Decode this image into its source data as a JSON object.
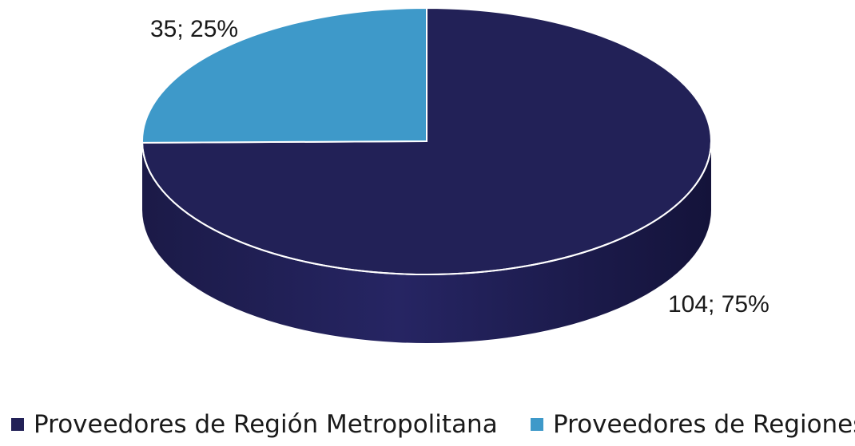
{
  "chart_data": {
    "type": "pie",
    "style": "3d",
    "slices": [
      {
        "name": "Proveedores de Región Metropolitana",
        "value": 104,
        "percent": 75,
        "label": "104; 75%",
        "color": "#222157"
      },
      {
        "name": "Proveedores de Regiones",
        "value": 35,
        "percent": 25,
        "label": "35; 25%",
        "color": "#3e99c9"
      }
    ],
    "legend": {
      "position": "bottom",
      "items": [
        "Proveedores de Región Metropolitana",
        "Proveedores de Regiones"
      ]
    }
  }
}
